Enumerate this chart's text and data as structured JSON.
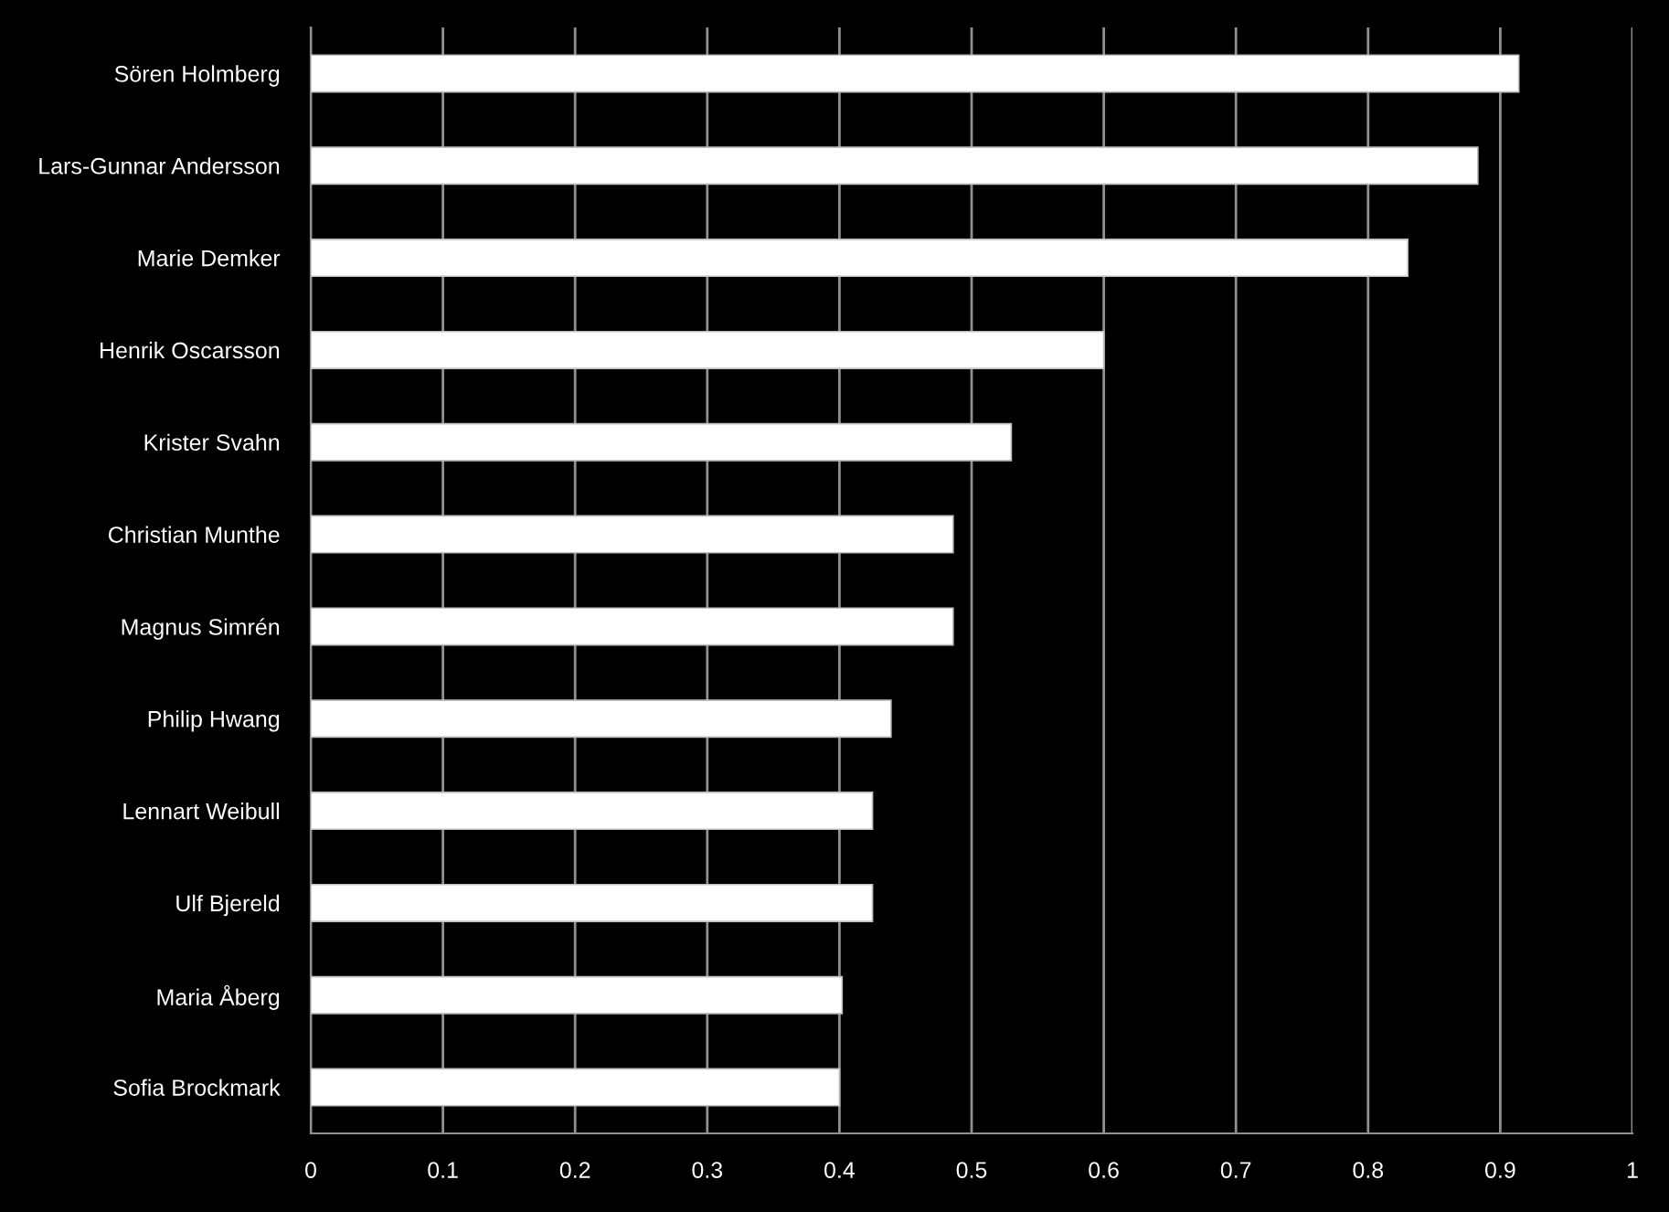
{
  "chart_data": {
    "type": "bar",
    "orientation": "horizontal",
    "categories": [
      "Sören Holmberg",
      "Lars-Gunnar Andersson",
      "Marie Demker",
      "Henrik Oscarsson",
      "Krister Svahn",
      "Christian Munthe",
      "Magnus Simrén",
      "Philip Hwang",
      "Lennart Weibull",
      "Ulf Bjereld",
      "Maria Åberg",
      "Sofia Brockmark"
    ],
    "values": [
      0.914,
      0.883,
      0.83,
      0.6,
      0.53,
      0.486,
      0.486,
      0.439,
      0.425,
      0.425,
      0.402,
      0.4
    ],
    "color": "#ffffff",
    "xlim": [
      0,
      1
    ],
    "xticks": [
      0,
      0.1,
      0.2,
      0.3,
      0.4,
      0.5,
      0.6,
      0.7,
      0.8,
      0.9,
      1
    ],
    "grid": "x"
  }
}
